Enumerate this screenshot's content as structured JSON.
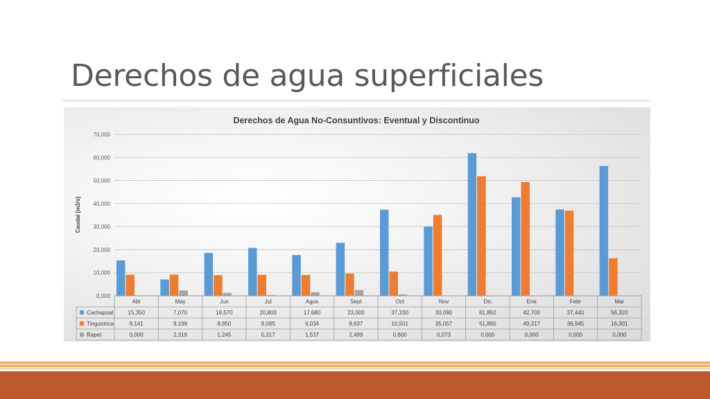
{
  "slide": {
    "title": "Derechos de agua superficiales"
  },
  "colors": {
    "Cachapoal": "#5b9bd5",
    "Tinguiririca": "#ed7d31",
    "Rapel": "#a5a5a5"
  },
  "chart_data": {
    "type": "bar",
    "title": "Derechos de Agua No-Consuntivos: Eventual y Discontinuo",
    "ylabel": "Caudal [m3/s]",
    "xlabel": "",
    "ylim": [
      0,
      70
    ],
    "yticks": [
      "0,000",
      "10,000",
      "20,000",
      "30,000",
      "40,000",
      "50,000",
      "60,000",
      "70,000"
    ],
    "grid": true,
    "legend": "data-table",
    "categories": [
      "Abr",
      "May",
      "Jun",
      "Jul",
      "Agos",
      "Sept",
      "Oct",
      "Nov",
      "Dic",
      "Ene",
      "Febr",
      "Mar"
    ],
    "series": [
      {
        "name": "Cachapoal",
        "values": [
          15.35,
          7.07,
          18.57,
          20.8,
          17.68,
          23.0,
          37.33,
          30.09,
          61.85,
          42.7,
          37.44,
          56.32
        ],
        "labels": [
          "15,350",
          "7,070",
          "18,570",
          "20,800",
          "17,680",
          "23,000",
          "37,330",
          "30,090",
          "61,850",
          "42,700",
          "37,440",
          "56,320"
        ]
      },
      {
        "name": "Tinguiririca",
        "values": [
          9.141,
          9.199,
          8.95,
          9.095,
          9.034,
          9.637,
          10.501,
          35.057,
          51.86,
          49.317,
          36.945,
          16.301
        ],
        "labels": [
          "9,141",
          "9,199",
          "8,950",
          "9,095",
          "9,034",
          "9,637",
          "10,501",
          "35,057",
          "51,860",
          "49,317",
          "36,945",
          "16,301"
        ]
      },
      {
        "name": "Rapel",
        "values": [
          0.0,
          2.319,
          1.245,
          0.317,
          1.537,
          2.499,
          0.6,
          0.073,
          0.0,
          0.0,
          0.0,
          0.0
        ],
        "labels": [
          "0,000",
          "2,319",
          "1,245",
          "0,317",
          "1,537",
          "2,499",
          "0,600",
          "0,073",
          "0,000",
          "0,000",
          "0,000",
          "0,000"
        ]
      }
    ]
  }
}
